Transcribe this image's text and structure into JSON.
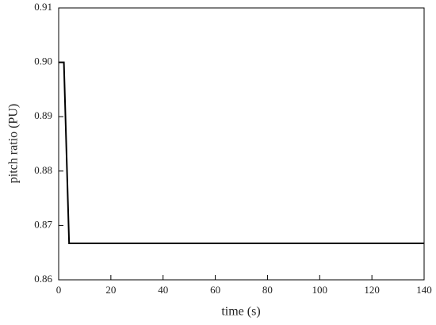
{
  "chart_data": {
    "type": "line",
    "x_label": "time (s)",
    "y_label": "pitch ratio (PU)",
    "x": [
      0,
      2,
      4,
      140
    ],
    "series": [
      {
        "name": "pitch ratio",
        "color": "#000000",
        "values": [
          0.9,
          0.9,
          0.8667,
          0.8667
        ]
      }
    ],
    "xlim": [
      0,
      140
    ],
    "xticks": [
      0,
      20,
      40,
      60,
      80,
      100,
      120,
      140
    ],
    "ylim": [
      0.86,
      0.91
    ],
    "yticks": [
      0.86,
      0.87,
      0.88,
      0.89,
      {
        "value": 0.9,
        "label": "0.90"
      },
      0.91
    ],
    "grid": false
  }
}
